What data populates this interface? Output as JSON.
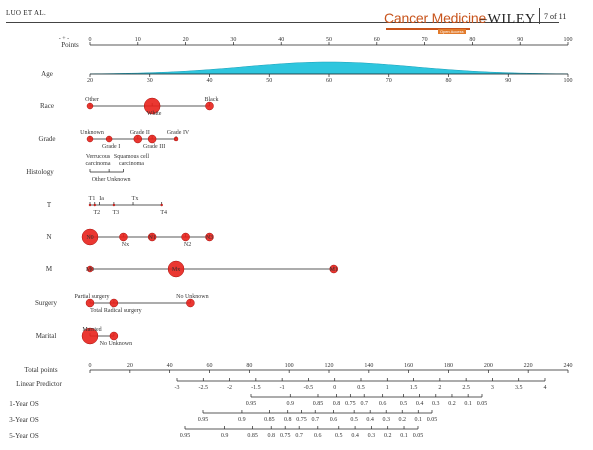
{
  "header": {
    "running_head": "LUO ET AL.",
    "journal": "Cancer Medicine",
    "open_access": "Open Access",
    "publisher": "WILEY",
    "page": "7 of 11"
  },
  "chart_data": {
    "type": "nomogram",
    "rows": [
      {
        "key": "points",
        "label": "Points",
        "ticks": [
          0,
          10,
          20,
          30,
          40,
          50,
          60,
          70,
          80,
          90,
          100
        ]
      },
      {
        "key": "age",
        "label": "Age",
        "ticks": [
          20,
          30,
          40,
          50,
          60,
          70,
          80,
          90,
          100
        ],
        "density_peak_age": 60
      },
      {
        "key": "race",
        "label": "Race",
        "levels": [
          {
            "name": "Other",
            "points": 0,
            "pos": "above",
            "size": 3
          },
          {
            "name": "White",
            "points": 13,
            "pos": "below",
            "size": 8
          },
          {
            "name": "Black",
            "points": 25,
            "pos": "above",
            "size": 4
          }
        ]
      },
      {
        "key": "grade",
        "label": "Grade",
        "levels": [
          {
            "name": "Unknown",
            "points": 0,
            "pos": "above",
            "size": 3
          },
          {
            "name": "Grade I",
            "points": 4,
            "pos": "below",
            "size": 3
          },
          {
            "name": "Grade II",
            "points": 10,
            "pos": "above",
            "size": 4
          },
          {
            "name": "Grade III",
            "points": 13,
            "pos": "below",
            "size": 4
          },
          {
            "name": "Grade IV",
            "points": 18,
            "pos": "above",
            "size": 2
          }
        ]
      },
      {
        "key": "histology",
        "label": "Histology",
        "levels": [
          {
            "name": "Verrucous carcinoma",
            "points": 0,
            "pos": "above2",
            "size": 0
          },
          {
            "name": "Other Unknown",
            "points": 4,
            "pos": "below",
            "size": 0
          },
          {
            "name": "Squamous cell carcinoma",
            "points": 7,
            "pos": "above2",
            "size": 0
          }
        ]
      },
      {
        "key": "t",
        "label": "T",
        "levels": [
          {
            "name": "T1",
            "points": 0,
            "pos": "above",
            "size": 1
          },
          {
            "name": "T2",
            "points": 1,
            "pos": "below",
            "size": 1
          },
          {
            "name": "Ia",
            "points": 2,
            "pos": "above",
            "size": 0
          },
          {
            "name": "T3",
            "points": 5,
            "pos": "below",
            "size": 1
          },
          {
            "name": "Tx",
            "points": 9,
            "pos": "above",
            "size": 0
          },
          {
            "name": "T4",
            "points": 15,
            "pos": "below",
            "size": 1
          }
        ]
      },
      {
        "key": "n",
        "label": "N",
        "levels": [
          {
            "name": "N0",
            "points": 0,
            "pos": "on",
            "size": 8
          },
          {
            "name": "Nx",
            "points": 7,
            "pos": "below",
            "size": 4
          },
          {
            "name": "N1",
            "points": 13,
            "pos": "on",
            "size": 4
          },
          {
            "name": "N2",
            "points": 20,
            "pos": "below",
            "size": 4
          },
          {
            "name": "N3",
            "points": 25,
            "pos": "on",
            "size": 4
          }
        ]
      },
      {
        "key": "m",
        "label": "M",
        "levels": [
          {
            "name": "M0",
            "points": 0,
            "pos": "on",
            "size": 3
          },
          {
            "name": "Mx",
            "points": 18,
            "pos": "on",
            "size": 8
          },
          {
            "name": "M1",
            "points": 51,
            "pos": "on",
            "size": 4
          }
        ]
      },
      {
        "key": "surgery",
        "label": "Surgery",
        "levels": [
          {
            "name": "Partial surgery",
            "points": 0,
            "pos": "above",
            "size": 4
          },
          {
            "name": "Total Radical surgery",
            "points": 5,
            "pos": "below",
            "size": 4
          },
          {
            "name": "No Unknown",
            "points": 21,
            "pos": "above",
            "size": 4
          }
        ]
      },
      {
        "key": "marital",
        "label": "Marital",
        "levels": [
          {
            "name": "Married",
            "points": 0,
            "pos": "above",
            "size": 8
          },
          {
            "name": "No Unknown",
            "points": 5,
            "pos": "below",
            "size": 4
          }
        ]
      },
      {
        "key": "total",
        "label": "Total points",
        "ticks": [
          0,
          20,
          40,
          60,
          80,
          100,
          120,
          140,
          160,
          180,
          200,
          220,
          240
        ]
      },
      {
        "key": "lp",
        "label": "Linear Predictor",
        "ticks": [
          "-3",
          "-2.5",
          "-2",
          "-1.5",
          "-1",
          "-0.5",
          "0",
          "0.5",
          "1",
          "1.5",
          "2",
          "2.5",
          "3",
          "3.5",
          "4"
        ]
      },
      {
        "key": "os1",
        "label": "1-Year OS",
        "ticks": [
          "0.95",
          "0.9",
          "0.85",
          "0.8",
          "0.75",
          "0.7",
          "0.6",
          "0.5",
          "0.4",
          "0.3",
          "0.2",
          "0.1",
          "0.05"
        ]
      },
      {
        "key": "os3",
        "label": "3-Year OS",
        "ticks": [
          "0.95",
          "0.9",
          "0.85",
          "0.8",
          "0.75",
          "0.7",
          "0.6",
          "0.5",
          "0.4",
          "0.3",
          "0.2",
          "0.1",
          "0.05"
        ]
      },
      {
        "key": "os5",
        "label": "5-Year OS",
        "ticks": [
          "0.95",
          "0.9",
          "0.85",
          "0.8",
          "0.75",
          "0.7",
          "0.6",
          "0.5",
          "0.4",
          "0.3",
          "0.2",
          "0.1",
          "0.05"
        ]
      }
    ],
    "colors": {
      "point": "#e8211b",
      "density": "#2ec6de",
      "line": "#222222"
    }
  }
}
